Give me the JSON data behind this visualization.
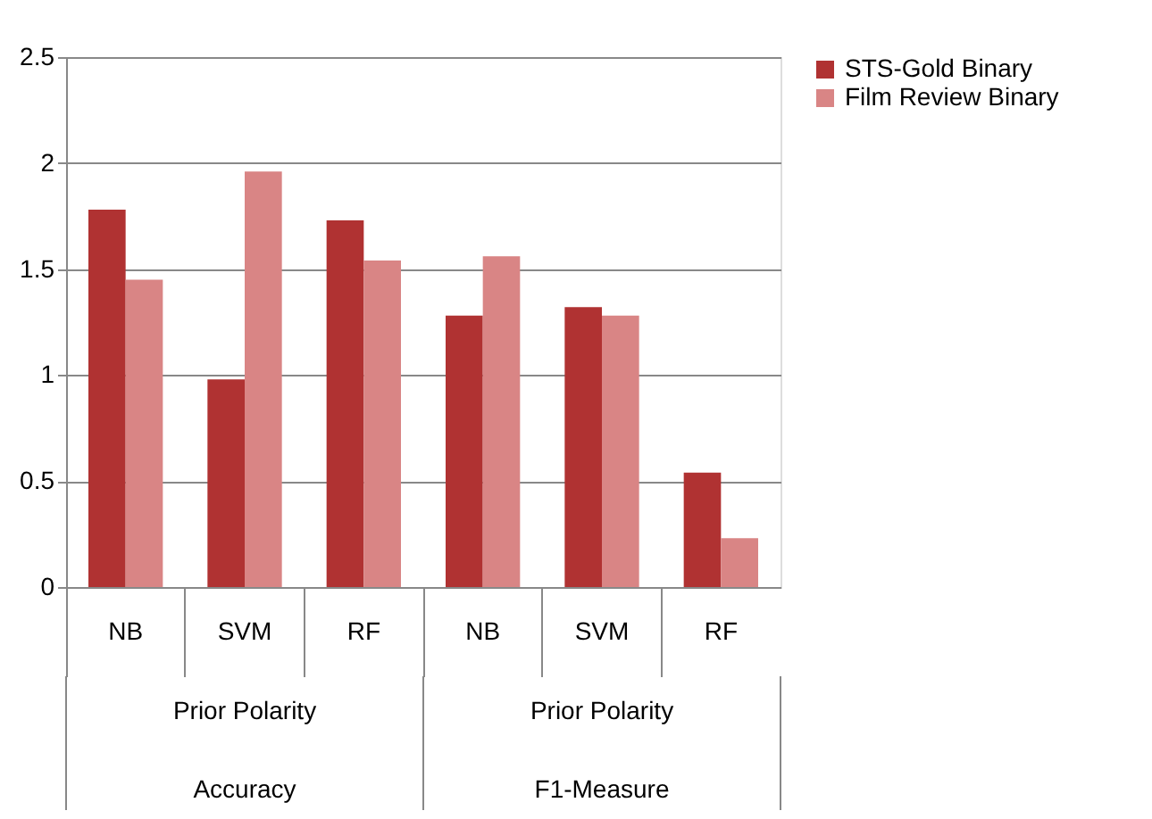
{
  "chart_data": {
    "type": "bar",
    "categories": [
      "NB",
      "SVM",
      "RF",
      "NB",
      "SVM",
      "RF"
    ],
    "series": [
      {
        "name": "STS-Gold Binary",
        "color": "#b03232",
        "values": [
          1.78,
          0.98,
          1.73,
          1.28,
          1.32,
          0.54
        ]
      },
      {
        "name": "Film Review Binary",
        "color": "#d98585",
        "values": [
          1.45,
          1.96,
          1.54,
          1.56,
          1.28,
          0.23
        ]
      }
    ],
    "ylim": [
      0,
      2.5
    ],
    "yticks": [
      0,
      0.5,
      1,
      1.5,
      2,
      2.5
    ],
    "grid": "y",
    "legend": "right",
    "annotations": [
      "Prior Polarity",
      "Prior Polarity",
      "Accuracy",
      "F1-Measure"
    ]
  }
}
